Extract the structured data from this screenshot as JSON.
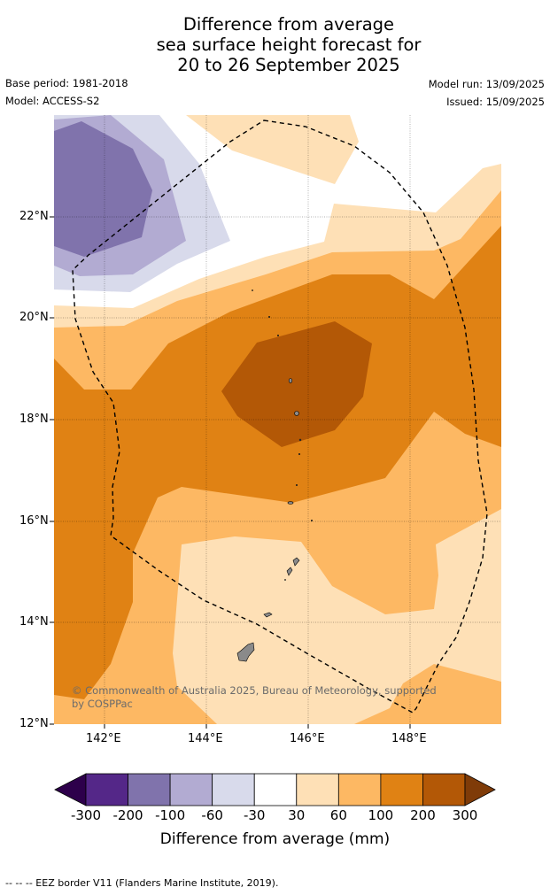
{
  "title": {
    "line1": "Difference from average",
    "line2": "sea surface height forecast for",
    "line3": "20 to 26 September 2025"
  },
  "meta": {
    "base_period": "Base period: 1981-2018",
    "model": "Model: ACCESS-S2",
    "model_run": "Model run: 13/09/2025",
    "issued": "Issued: 15/09/2025"
  },
  "axes": {
    "lat_labels": [
      "22°N",
      "20°N",
      "18°N",
      "16°N",
      "14°N",
      "12°N"
    ],
    "lon_labels": [
      "142°E",
      "144°E",
      "146°E",
      "148°E"
    ]
  },
  "copyright": {
    "line1": "© Commonwealth of Australia 2025, Bureau of Meteorology, supported",
    "line2": "by COSPPac"
  },
  "colorbar": {
    "ticks": [
      "-300",
      "-200",
      "-100",
      "-60",
      "-30",
      "30",
      "60",
      "100",
      "200",
      "300"
    ],
    "colors": [
      "#2d004b",
      "#542788",
      "#8073ac",
      "#b2abd2",
      "#d8daeb",
      "#ffffff",
      "#fee0b6",
      "#fdb863",
      "#e08214",
      "#b35806",
      "#7f3b08"
    ],
    "title": "Difference from average (mm)"
  },
  "footer": "--  --  -- EEZ border V11 (Flanders Marine Institute, 2019)."
}
